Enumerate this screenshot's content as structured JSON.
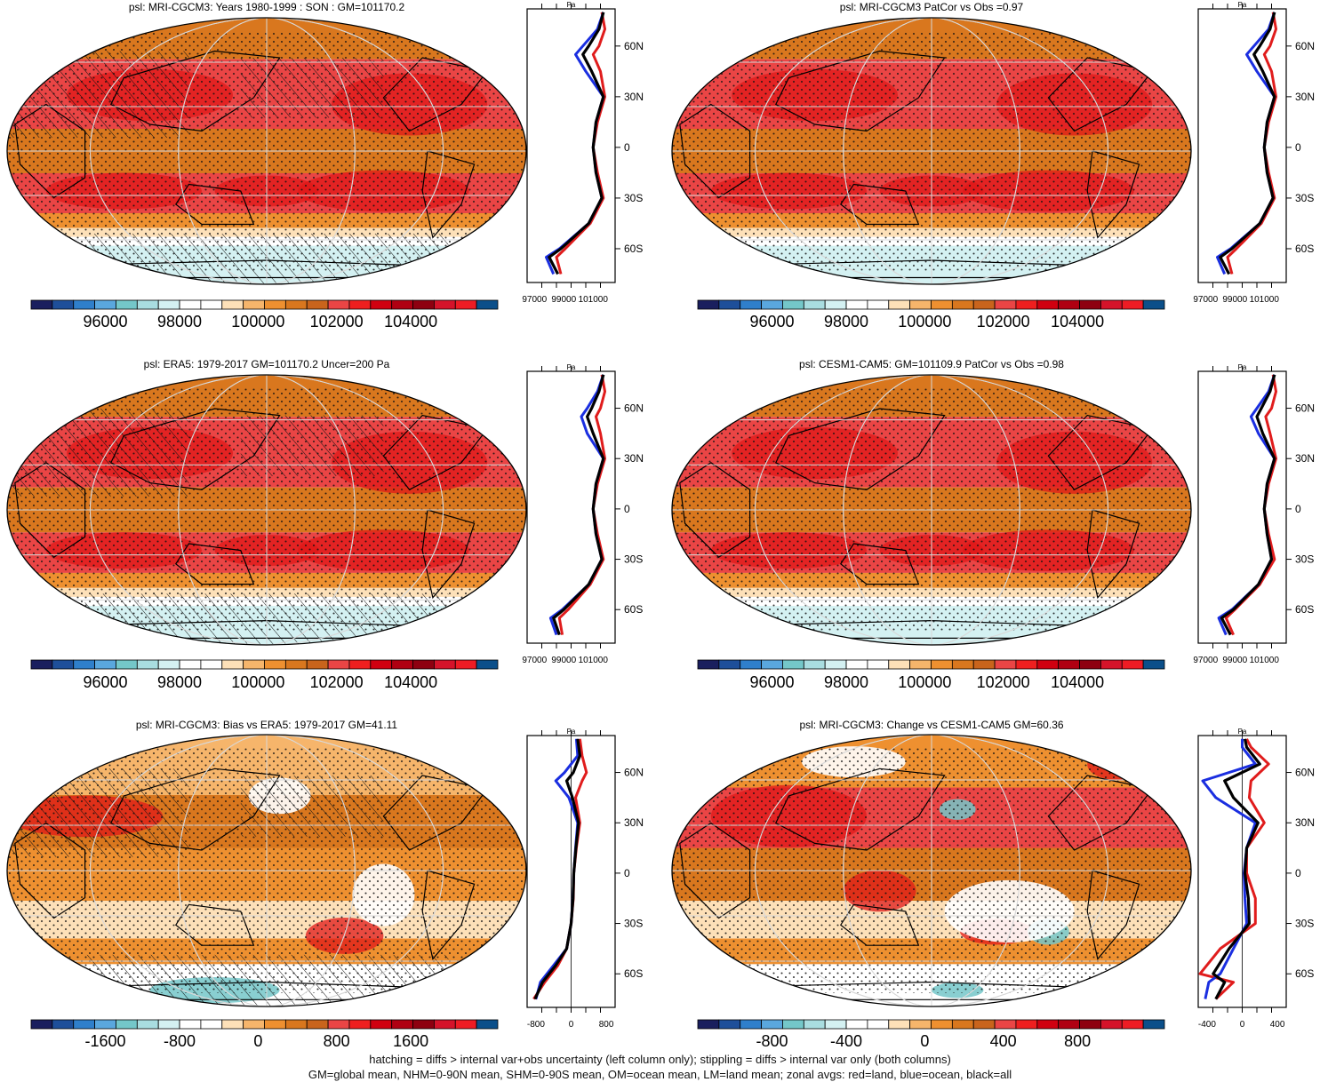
{
  "panels": [
    {
      "title": "psl: MRI-CGCM3: Years 1980-1999 : SON : GM=101170.2",
      "kind": "abs",
      "hatch": "left"
    },
    {
      "title": "psl: MRI-CGCM3 PatCor vs Obs =0.97",
      "kind": "abs",
      "hatch": "none"
    },
    {
      "title": "psl: ERA5: 1979-2017 GM=101170.2 Uncer=200 Pa",
      "kind": "abs",
      "hatch": "left"
    },
    {
      "title": "psl: CESM1-CAM5: GM=101109.9 PatCor vs Obs =0.98",
      "kind": "abs",
      "hatch": "none"
    },
    {
      "title": "psl: MRI-CGCM3: Bias vs ERA5: 1979-2017  GM=41.11",
      "kind": "bias",
      "hatch": "left"
    },
    {
      "title": "psl: MRI-CGCM3: Change vs CESM1-CAM5 GM=60.36",
      "kind": "change",
      "hatch": "none"
    }
  ],
  "zonal_unit": "Pa",
  "lat_labels": [
    "60N",
    "30N",
    "0",
    "30S",
    "60S"
  ],
  "zonal_xticks": {
    "abs": [
      "97000",
      "99000",
      "101000"
    ],
    "bias": [
      "-800",
      "0",
      "800"
    ],
    "change": [
      "-400",
      "0",
      "400"
    ]
  },
  "colorbars": {
    "abs": {
      "labels": [
        "96000",
        "98000",
        "100000",
        "102000",
        "104000"
      ]
    },
    "bias": {
      "labels": [
        "-1600",
        "-800",
        "0",
        "800",
        "1600"
      ]
    },
    "change": {
      "labels": [
        "-800",
        "-400",
        "0",
        "400",
        "800"
      ]
    }
  },
  "palette": [
    "#1a1f5e",
    "#1e4f9a",
    "#2f7fcb",
    "#5aa7de",
    "#74c7c9",
    "#a9dde0",
    "#d4f1f2",
    "#ffffff",
    "#ffffff",
    "#fde0b8",
    "#f6b56b",
    "#ee9030",
    "#d9771e",
    "#c9641c",
    "#ea4545",
    "#ef1f1f",
    "#d00010",
    "#b00012",
    "#8e0010",
    "#d5132a",
    "#ee1c24",
    "#0b4f8a"
  ],
  "footer": [
    "hatching = diffs > internal var+obs uncertainty (left column only); stippling = diffs > internal var only (both columns)",
    "GM=global mean, NHM=0-90N mean, SHM=0-90S mean, OM=ocean mean, LM=land mean; zonal avgs: red=land, blue=ocean, black=all"
  ],
  "chart_data": [
    {
      "type": "line",
      "title": "psl: MRI-CGCM3: Years 1980-1999 : SON : GM=101170.2",
      "xlabel": "Pa",
      "xlim": [
        96500,
        102500
      ],
      "y": [
        -75,
        -65,
        -60,
        -45,
        -30,
        -15,
        0,
        15,
        30,
        45,
        55,
        60,
        70,
        80
      ],
      "series": [
        {
          "values": [
            98800,
            98500,
            99100,
            100800,
            101700,
            101300,
            101000,
            101300,
            101800,
            101500,
            101000,
            101400,
            101800,
            101600
          ]
        },
        {
          "values": [
            98300,
            97800,
            98700,
            100700,
            101600,
            101200,
            101000,
            101200,
            101700,
            100500,
            99800,
            100300,
            101300,
            101700
          ]
        },
        {
          "values": [
            98600,
            98000,
            98800,
            100700,
            101600,
            101200,
            101000,
            101200,
            101700,
            100900,
            100300,
            100700,
            101400,
            101700
          ]
        }
      ]
    },
    {
      "type": "line",
      "title": "psl: MRI-CGCM3 PatCor vs Obs =0.97",
      "xlabel": "Pa",
      "xlim": [
        96500,
        102500
      ],
      "y": [
        -75,
        -65,
        -60,
        -45,
        -30,
        -15,
        0,
        15,
        30,
        45,
        55,
        60,
        70,
        80
      ],
      "series": [
        {
          "values": [
            98800,
            98500,
            99100,
            100800,
            101700,
            101300,
            101000,
            101300,
            101800,
            101500,
            101000,
            101400,
            101800,
            101600
          ]
        },
        {
          "values": [
            98300,
            97800,
            98700,
            100700,
            101600,
            101200,
            101000,
            101200,
            101700,
            100500,
            99800,
            100300,
            101300,
            101700
          ]
        },
        {
          "values": [
            98600,
            98000,
            98800,
            100700,
            101600,
            101200,
            101000,
            101200,
            101700,
            100900,
            100300,
            100700,
            101400,
            101700
          ]
        }
      ]
    },
    {
      "type": "line",
      "title": "psl: ERA5: 1979-2017 GM=101170.2 Uncer=200 Pa",
      "xlabel": "Pa",
      "xlim": [
        96500,
        102500
      ],
      "y": [
        -75,
        -65,
        -60,
        -45,
        -30,
        -15,
        0,
        15,
        30,
        45,
        55,
        60,
        70,
        80
      ],
      "series": [
        {
          "values": [
            98900,
            98700,
            99300,
            100800,
            101700,
            101300,
            101000,
            101300,
            101800,
            101500,
            101200,
            101500,
            101800,
            101600
          ]
        },
        {
          "values": [
            98500,
            98100,
            98900,
            100700,
            101600,
            101200,
            101000,
            101200,
            101700,
            100600,
            100200,
            100600,
            101300,
            101700
          ]
        },
        {
          "values": [
            98700,
            98300,
            99000,
            100700,
            101600,
            101200,
            101000,
            101200,
            101700,
            101000,
            100600,
            100900,
            101400,
            101700
          ]
        }
      ]
    },
    {
      "type": "line",
      "title": "psl: CESM1-CAM5: GM=101109.9 PatCor vs Obs =0.98",
      "xlabel": "Pa",
      "xlim": [
        96500,
        102500
      ],
      "y": [
        -75,
        -65,
        -60,
        -45,
        -30,
        -15,
        0,
        15,
        30,
        45,
        55,
        60,
        70,
        80
      ],
      "series": [
        {
          "values": [
            98900,
            98400,
            99000,
            100700,
            101700,
            101300,
            101000,
            101300,
            101800,
            101400,
            101100,
            101500,
            101800,
            101600
          ]
        },
        {
          "values": [
            98400,
            97900,
            98800,
            100600,
            101500,
            101200,
            101000,
            101200,
            101700,
            100600,
            100100,
            100500,
            101300,
            101700
          ]
        },
        {
          "values": [
            98700,
            98100,
            98900,
            100600,
            101500,
            101200,
            101000,
            101200,
            101700,
            100900,
            100500,
            100800,
            101400,
            101700
          ]
        }
      ]
    },
    {
      "type": "line",
      "title": "psl: MRI-CGCM3: Bias vs ERA5: 1979-2017  GM=41.11",
      "xlabel": "Pa",
      "xlim": [
        -1000,
        1000
      ],
      "y": [
        -75,
        -65,
        -55,
        -45,
        -30,
        -15,
        0,
        15,
        30,
        45,
        55,
        60,
        70,
        80
      ],
      "series": [
        {
          "values": [
            -850,
            -600,
            -300,
            -100,
            0,
            50,
            60,
            120,
            200,
            100,
            250,
            350,
            250,
            200
          ]
        },
        {
          "values": [
            -800,
            -700,
            -400,
            -100,
            0,
            40,
            60,
            100,
            150,
            -50,
            -350,
            -150,
            150,
            120
          ]
        },
        {
          "values": [
            -820,
            -650,
            -350,
            -100,
            0,
            45,
            60,
            110,
            170,
            30,
            -100,
            50,
            200,
            150
          ]
        }
      ]
    },
    {
      "type": "line",
      "title": "psl: MRI-CGCM3: Change vs CESM1-CAM5 GM=60.36",
      "xlabel": "Pa",
      "xlim": [
        -500,
        500
      ],
      "y": [
        -75,
        -65,
        -60,
        -45,
        -30,
        -15,
        0,
        15,
        30,
        45,
        55,
        65,
        75,
        80
      ],
      "series": [
        {
          "values": [
            -300,
            -100,
            -480,
            -250,
            150,
            150,
            50,
            50,
            250,
            80,
            100,
            300,
            100,
            50
          ]
        },
        {
          "values": [
            -420,
            -380,
            -250,
            -100,
            50,
            30,
            20,
            50,
            150,
            -300,
            -450,
            150,
            0,
            0
          ]
        },
        {
          "values": [
            -300,
            -200,
            -330,
            -150,
            80,
            70,
            30,
            50,
            180,
            -100,
            -200,
            200,
            50,
            30
          ]
        }
      ]
    }
  ]
}
